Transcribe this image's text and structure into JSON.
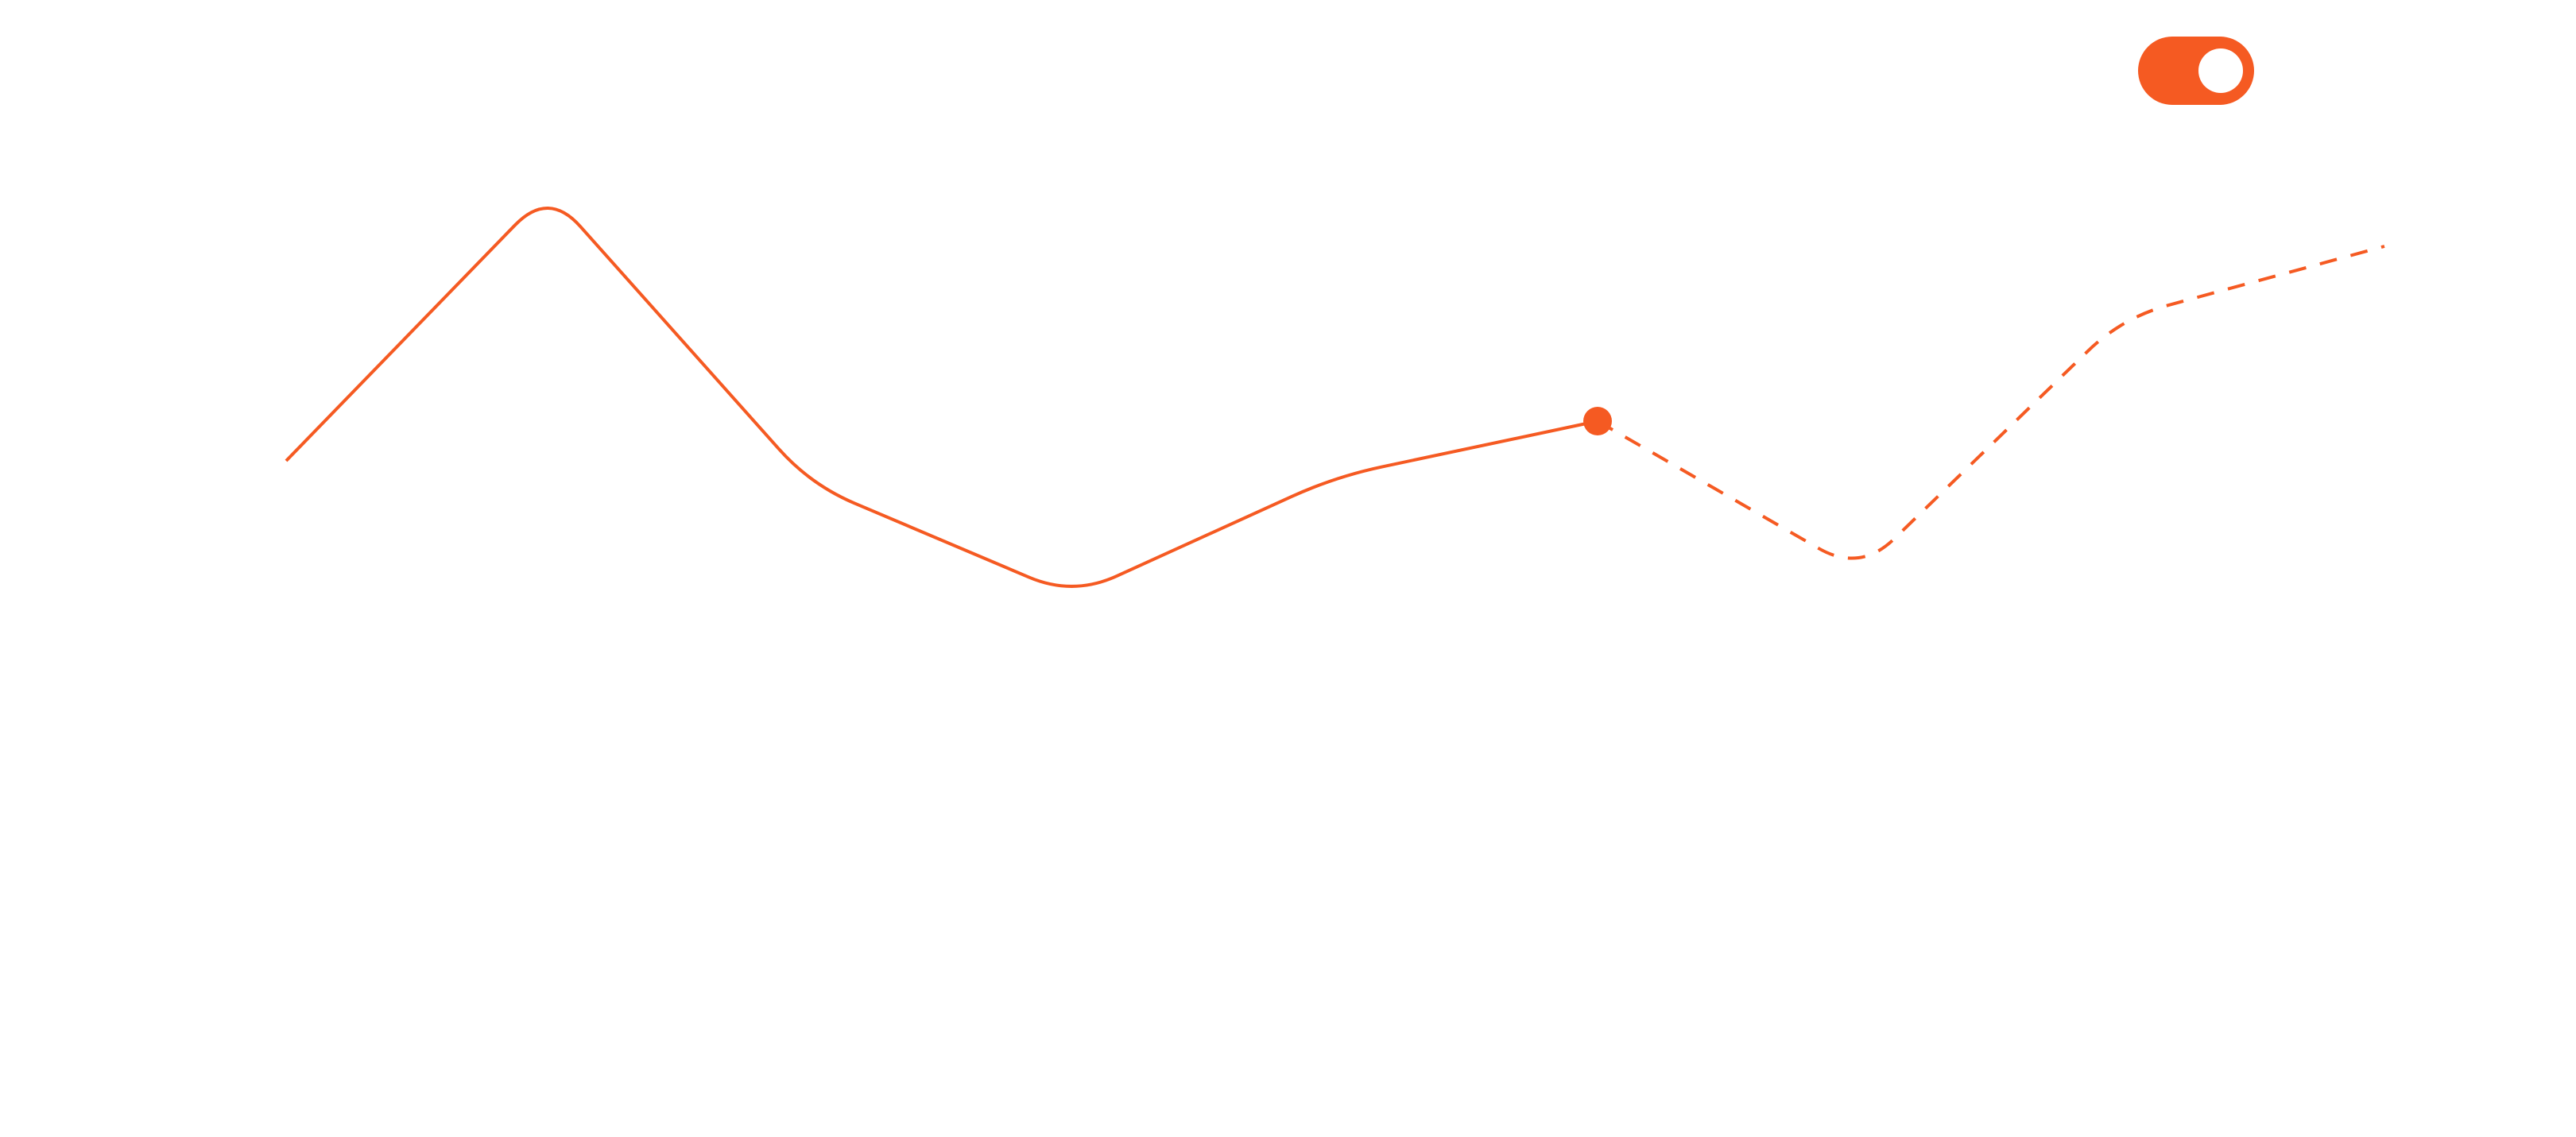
{
  "colors": {
    "accent": "#F55A22",
    "background": "#FFFFFF",
    "knob": "#FFFFFF"
  },
  "toggle": {
    "state": "on",
    "icon": "toggle-switch-icon"
  },
  "chart_data": {
    "type": "line",
    "title": "",
    "xlabel": "",
    "ylabel": "",
    "grid": false,
    "legend": "none",
    "x": [
      0,
      1,
      2,
      3,
      4,
      5,
      6,
      7,
      8
    ],
    "xlim": [
      0,
      8
    ],
    "ylim": [
      0,
      10
    ],
    "series": [
      {
        "style": "solid",
        "x": [
          0,
          1,
          2,
          3,
          4,
          5
        ],
        "values": [
          5.8,
          9.2,
          5.5,
          4.1,
          5.6,
          6.3
        ]
      },
      {
        "style": "dashed",
        "x": [
          5,
          6,
          7,
          8
        ],
        "values": [
          6.3,
          4.4,
          7.6,
          8.5
        ]
      }
    ],
    "highlight_point": {
      "x": 5,
      "value": 6.3
    }
  }
}
